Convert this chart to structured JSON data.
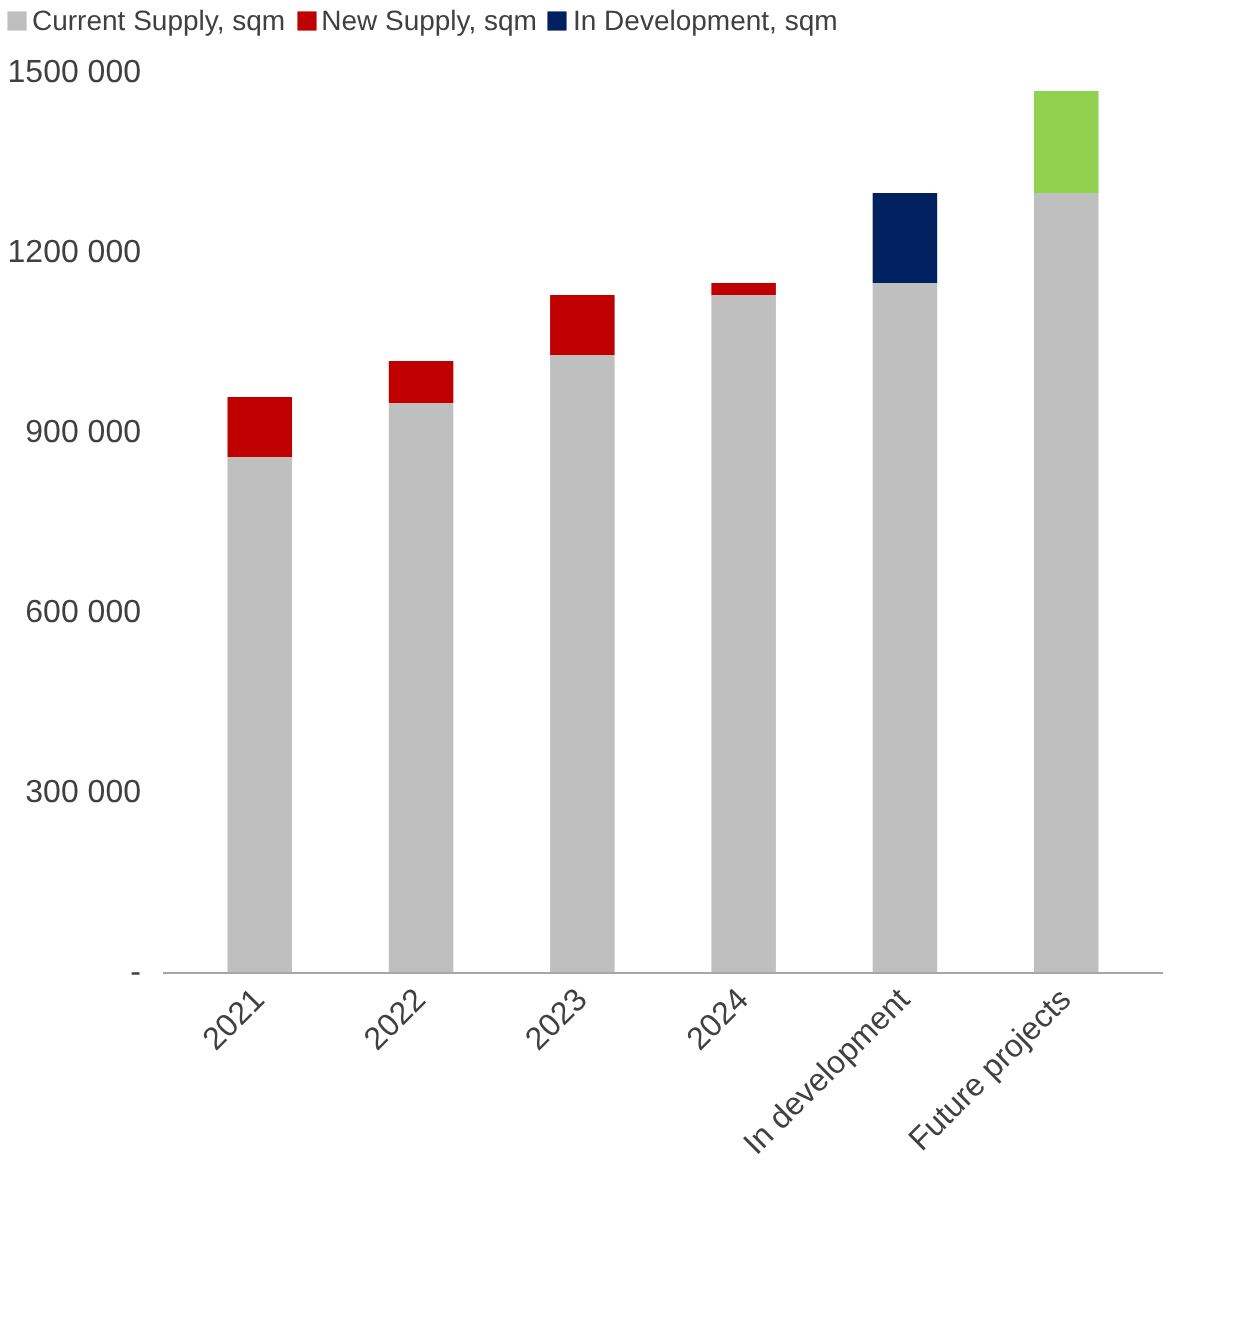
{
  "chart_data": {
    "type": "bar",
    "stacked": true,
    "categories": [
      "2021",
      "2022",
      "2023",
      "2024",
      "In development",
      "Future projects"
    ],
    "series": [
      {
        "name": "Current Supply, sqm",
        "color": "#bfbfbf",
        "values": [
          860000,
          950000,
          1030000,
          1130000,
          1150000,
          1300000
        ]
      },
      {
        "name": "New Supply, sqm",
        "color": "#c00000",
        "values": [
          100000,
          70000,
          100000,
          20000,
          null,
          null
        ]
      },
      {
        "name": "In Development, sqm",
        "color": "#002060",
        "values": [
          null,
          null,
          null,
          null,
          150000,
          null
        ]
      },
      {
        "color": "#92d050",
        "values": [
          null,
          null,
          null,
          null,
          null,
          170000
        ]
      }
    ],
    "ylim": [
      0,
      1500000
    ],
    "yticks": [
      {
        "value": 0,
        "label": "-"
      },
      {
        "value": 300000,
        "label": "300 000"
      },
      {
        "value": 600000,
        "label": "600 000"
      },
      {
        "value": 900000,
        "label": "900 000"
      },
      {
        "value": 1200000,
        "label": "1200 000"
      },
      {
        "value": 1500000,
        "label": "1500 000"
      }
    ],
    "grid": false,
    "legend": "top"
  }
}
